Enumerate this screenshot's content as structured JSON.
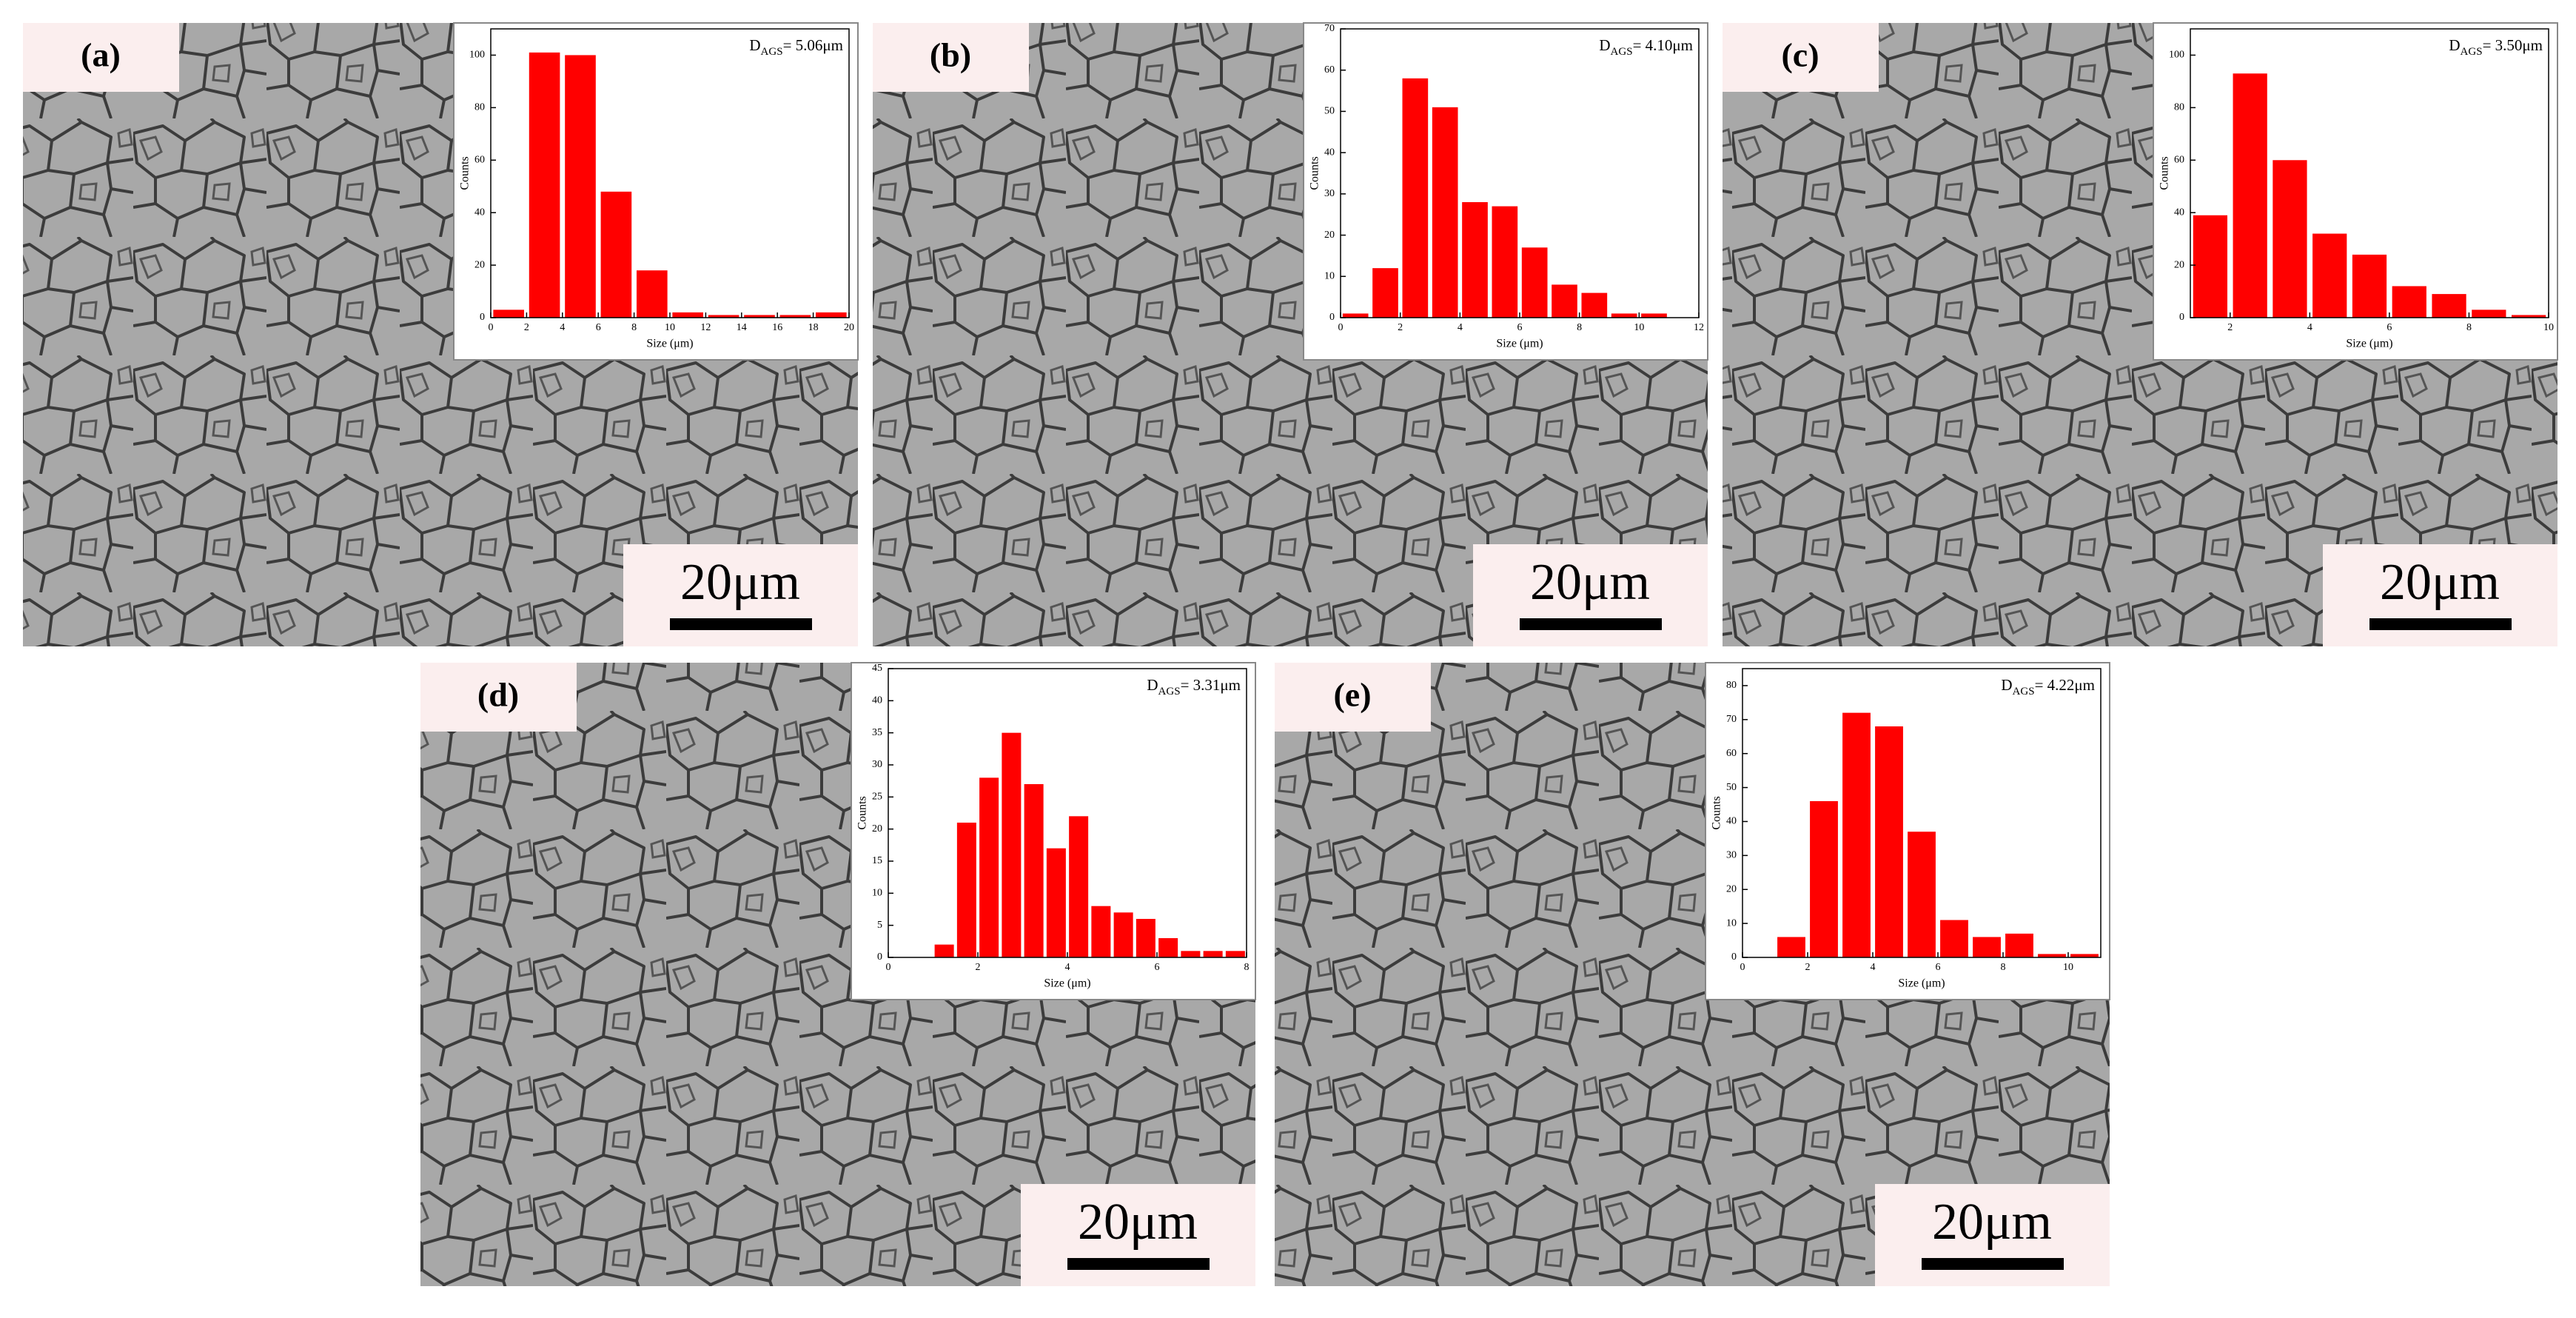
{
  "chart_data": [
    {
      "type": "histogram",
      "panel_label": "(a)",
      "scale_bar_label": "20μm",
      "annotation": [
        "D",
        "AGS",
        "= 5.06μm"
      ],
      "xlabel": "Size (μm)",
      "ylabel": "Counts",
      "color": "#ff0000",
      "bins": [
        0,
        2,
        4,
        6,
        8,
        10,
        12,
        14,
        16,
        18,
        20
      ],
      "values": [
        3,
        101,
        100,
        48,
        18,
        2,
        1,
        1,
        1,
        2
      ],
      "xlim": [
        0,
        20
      ],
      "xticks": [
        0,
        2,
        4,
        6,
        8,
        10,
        12,
        14,
        16,
        18,
        20
      ],
      "ylim": [
        0,
        110
      ],
      "yticks": [
        0,
        20,
        40,
        60,
        80,
        100
      ]
    },
    {
      "type": "histogram",
      "panel_label": "(b)",
      "scale_bar_label": "20μm",
      "annotation": [
        "D",
        "AGS",
        "= 4.10μm"
      ],
      "xlabel": "Size (μm)",
      "ylabel": "Counts",
      "color": "#ff0000",
      "bins": [
        0,
        1,
        2,
        3,
        4,
        5,
        6,
        7,
        8,
        9,
        10,
        11
      ],
      "values": [
        1,
        12,
        58,
        51,
        28,
        27,
        17,
        8,
        6,
        1,
        1
      ],
      "xlim": [
        0,
        12
      ],
      "xticks": [
        0,
        2,
        4,
        6,
        8,
        10,
        12
      ],
      "ylim": [
        0,
        70
      ],
      "yticks": [
        0,
        10,
        20,
        30,
        40,
        50,
        60,
        70
      ]
    },
    {
      "type": "histogram",
      "panel_label": "(c)",
      "scale_bar_label": "20μm",
      "annotation": [
        "D",
        "AGS",
        "= 3.50μm"
      ],
      "xlabel": "Size (μm)",
      "ylabel": "Counts",
      "color": "#ff0000",
      "bins": [
        1,
        2,
        3,
        4,
        5,
        6,
        7,
        8,
        9,
        10
      ],
      "values": [
        39,
        93,
        60,
        32,
        24,
        12,
        9,
        3,
        1
      ],
      "xlim": [
        1,
        10
      ],
      "xticks": [
        2,
        4,
        6,
        8,
        10
      ],
      "ylim": [
        0,
        110
      ],
      "yticks": [
        0,
        20,
        40,
        60,
        80,
        100
      ]
    },
    {
      "type": "histogram",
      "panel_label": "(d)",
      "scale_bar_label": "20μm",
      "annotation": [
        "D",
        "AGS",
        "= 3.31μm"
      ],
      "xlabel": "Size (μm)",
      "ylabel": "Counts",
      "color": "#ff0000",
      "bins": [
        1,
        1.5,
        2,
        2.5,
        3,
        3.5,
        4,
        4.5,
        5,
        5.5,
        6,
        6.5,
        7,
        7.5,
        8
      ],
      "values": [
        2,
        21,
        28,
        35,
        27,
        17,
        22,
        8,
        7,
        6,
        3,
        1,
        1,
        1
      ],
      "xlim": [
        0,
        8
      ],
      "xticks": [
        0,
        2,
        4,
        6,
        8
      ],
      "ylim": [
        0,
        45
      ],
      "yticks": [
        0,
        5,
        10,
        15,
        20,
        25,
        30,
        35,
        40,
        45
      ]
    },
    {
      "type": "histogram",
      "panel_label": "(e)",
      "scale_bar_label": "20μm",
      "annotation": [
        "D",
        "AGS",
        "= 4.22μm"
      ],
      "xlabel": "Size (μm)",
      "ylabel": "Counts",
      "color": "#ff0000",
      "bins": [
        1,
        2,
        3,
        4,
        5,
        6,
        7,
        8,
        9,
        10,
        11
      ],
      "values": [
        6,
        46,
        72,
        68,
        37,
        11,
        6,
        7,
        1,
        1
      ],
      "xlim": [
        0,
        11
      ],
      "xticks": [
        0,
        2,
        4,
        6,
        8,
        10
      ],
      "ylim": [
        0,
        85
      ],
      "yticks": [
        0,
        10,
        20,
        30,
        40,
        50,
        60,
        70,
        80
      ]
    }
  ]
}
